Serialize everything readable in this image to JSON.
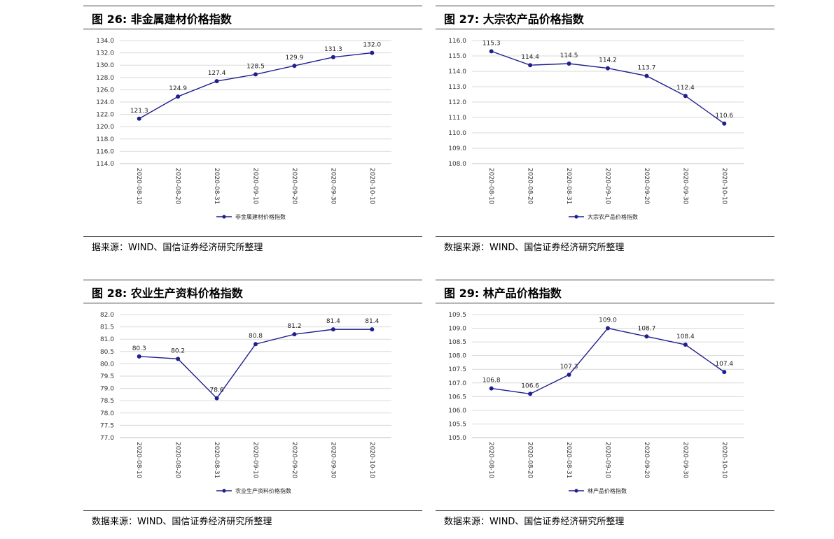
{
  "panels": [
    {
      "title": "图 26:  非金属建材价格指数",
      "source": "据来源：WIND、国信证券经济研究所整理",
      "chart_data": {
        "type": "line",
        "categories": [
          "2020-08-10",
          "2020-08-20",
          "2020-08-31",
          "2020-09-10",
          "2020-09-20",
          "2020-09-30",
          "2020-10-10"
        ],
        "series": [
          {
            "name": "非金属建材价格指数",
            "values": [
              121.3,
              124.9,
              127.4,
              128.5,
              129.9,
              131.3,
              132.0
            ]
          }
        ],
        "ylim": [
          114.0,
          134.0
        ],
        "ystep": 2.0,
        "legend": "bottom",
        "grid": true,
        "color": "#1f1f8f"
      }
    },
    {
      "title": "图 27:  大宗农产品价格指数",
      "source": "数据来源：WIND、国信证券经济研究所整理",
      "chart_data": {
        "type": "line",
        "categories": [
          "2020-08-10",
          "2020-08-20",
          "2020-08-31",
          "2020-09-10",
          "2020-09-20",
          "2020-09-30",
          "2020-10-10"
        ],
        "series": [
          {
            "name": "大宗农产品价格指数",
            "values": [
              115.3,
              114.4,
              114.5,
              114.2,
              113.7,
              112.4,
              110.6
            ]
          }
        ],
        "ylim": [
          108.0,
          116.0
        ],
        "ystep": 1.0,
        "legend": "bottom",
        "grid": true,
        "color": "#1f1f8f"
      }
    },
    {
      "title": "图 28:  农业生产资料价格指数",
      "source": "数据来源：WIND、国信证券经济研究所整理",
      "chart_data": {
        "type": "line",
        "categories": [
          "2020-08-10",
          "2020-08-20",
          "2020-08-31",
          "2020-09-10",
          "2020-09-20",
          "2020-09-30",
          "2020-10-10"
        ],
        "series": [
          {
            "name": "农业生产资料价格指数",
            "values": [
              80.3,
              80.2,
              78.6,
              80.8,
              81.2,
              81.4,
              81.4
            ]
          }
        ],
        "ylim": [
          77.0,
          82.0
        ],
        "ystep": 0.5,
        "legend": "bottom",
        "grid": true,
        "color": "#1f1f8f"
      }
    },
    {
      "title": "图 29:  林产品价格指数",
      "source": "数据来源：WIND、国信证券经济研究所整理",
      "chart_data": {
        "type": "line",
        "categories": [
          "2020-08-10",
          "2020-08-20",
          "2020-08-31",
          "2020-09-10",
          "2020-09-20",
          "2020-09-30",
          "2020-10-10"
        ],
        "series": [
          {
            "name": "林产品价格指数",
            "values": [
              106.8,
              106.6,
              107.3,
              109.0,
              108.7,
              108.4,
              107.4
            ]
          }
        ],
        "ylim": [
          105.0,
          109.5
        ],
        "ystep": 0.5,
        "legend": "bottom",
        "grid": true,
        "color": "#1f1f8f"
      }
    }
  ]
}
